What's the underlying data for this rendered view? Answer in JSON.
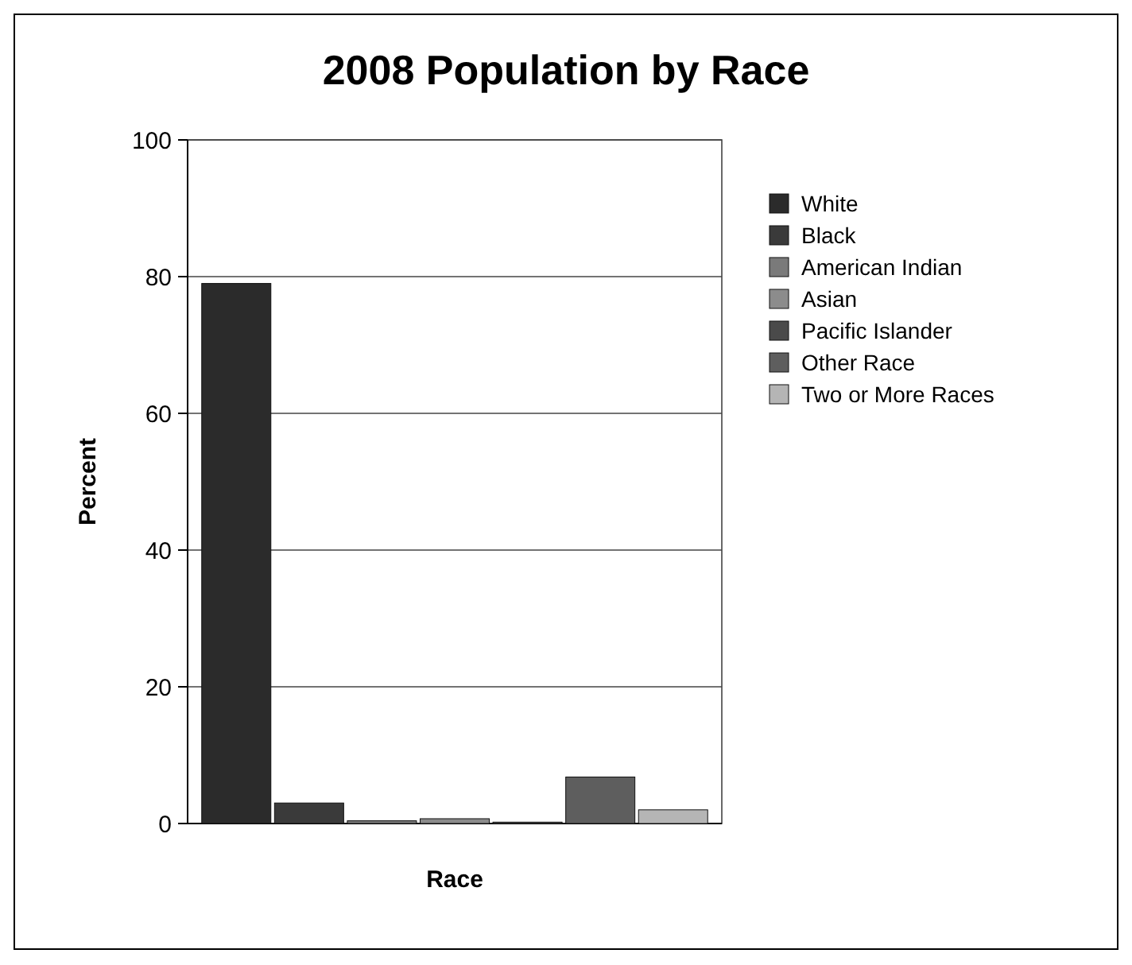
{
  "chart_data": {
    "type": "bar",
    "title": "2008 Population by Race",
    "xlabel": "Race",
    "ylabel": "Percent",
    "categories": [
      null
    ],
    "series": [
      {
        "name": "White",
        "color": "#2b2b2b",
        "values": [
          79
        ]
      },
      {
        "name": "Black",
        "color": "#3a3a3a",
        "values": [
          3
        ]
      },
      {
        "name": "American Indian",
        "color": "#7a7a7a",
        "values": [
          0.4
        ]
      },
      {
        "name": "Asian",
        "color": "#8c8c8c",
        "values": [
          0.7
        ]
      },
      {
        "name": "Pacific Islander",
        "color": "#4a4a4a",
        "values": [
          0.2
        ]
      },
      {
        "name": "Other Race",
        "color": "#5e5e5e",
        "values": [
          6.8
        ]
      },
      {
        "name": "Two or More Races",
        "color": "#b5b5b5",
        "values": [
          2
        ]
      }
    ],
    "ylim": [
      0,
      100
    ],
    "yticks": [
      0,
      20,
      40,
      60,
      80,
      100
    ],
    "grid": "y",
    "legend": "right"
  }
}
